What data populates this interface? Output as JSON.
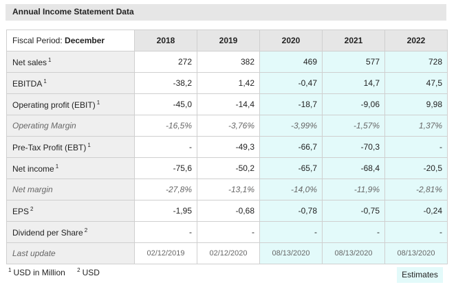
{
  "title": "Annual Income Statement Data",
  "fiscal_period_label": "Fiscal Period:",
  "fiscal_period_value": "December",
  "years": [
    "2018",
    "2019",
    "2020",
    "2021",
    "2022"
  ],
  "rows": [
    {
      "label": "Net sales",
      "sup": "1",
      "values": [
        "272",
        "382",
        "469",
        "577",
        "728"
      ]
    },
    {
      "label": "EBITDA",
      "sup": "1",
      "values": [
        "-38,2",
        "1,42",
        "-0,47",
        "14,7",
        "47,5"
      ]
    },
    {
      "label": "Operating profit (EBIT)",
      "sup": "1",
      "values": [
        "-45,0",
        "-14,4",
        "-18,7",
        "-9,06",
        "9,98"
      ]
    },
    {
      "label": "Operating Margin",
      "sup": "",
      "italic": true,
      "values": [
        "-16,5%",
        "-3,76%",
        "-3,99%",
        "-1,57%",
        "1,37%"
      ]
    },
    {
      "label": "Pre-Tax Profit (EBT)",
      "sup": "1",
      "values": [
        "-",
        "-49,3",
        "-66,7",
        "-70,3",
        "-"
      ]
    },
    {
      "label": "Net income",
      "sup": "1",
      "values": [
        "-75,6",
        "-50,2",
        "-65,7",
        "-68,4",
        "-20,5"
      ]
    },
    {
      "label": "Net margin",
      "sup": "",
      "italic": true,
      "values": [
        "-27,8%",
        "-13,1%",
        "-14,0%",
        "-11,9%",
        "-2,81%"
      ]
    },
    {
      "label": "EPS",
      "sup": "2",
      "values": [
        "-1,95",
        "-0,68",
        "-0,78",
        "-0,75",
        "-0,24"
      ]
    },
    {
      "label": "Dividend per Share",
      "sup": "2",
      "values": [
        "-",
        "-",
        "-",
        "-",
        "-"
      ]
    }
  ],
  "last_update": {
    "label": "Last update",
    "values": [
      "02/12/2019",
      "02/12/2020",
      "08/13/2020",
      "08/13/2020",
      "08/13/2020"
    ]
  },
  "footnotes": {
    "fn1_mark": "1",
    "fn1_text": "USD in Million",
    "fn2_mark": "2",
    "fn2_text": "USD"
  },
  "estimates_label": "Estimates",
  "colors": {
    "estimate_bg": "#e3fafa",
    "header_bg": "#e6e6e6",
    "label_bg": "#efefef"
  }
}
